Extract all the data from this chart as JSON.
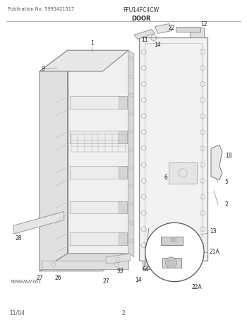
{
  "title_left": "Publication No: 5995421517",
  "title_center": "FFU14FC4CW",
  "title_section": "DOOR",
  "footer_left": "11/04",
  "footer_center": "2",
  "bg_color": "#ffffff",
  "lc": "#777777",
  "dc": "#444444",
  "stamp": "PØRENW361"
}
